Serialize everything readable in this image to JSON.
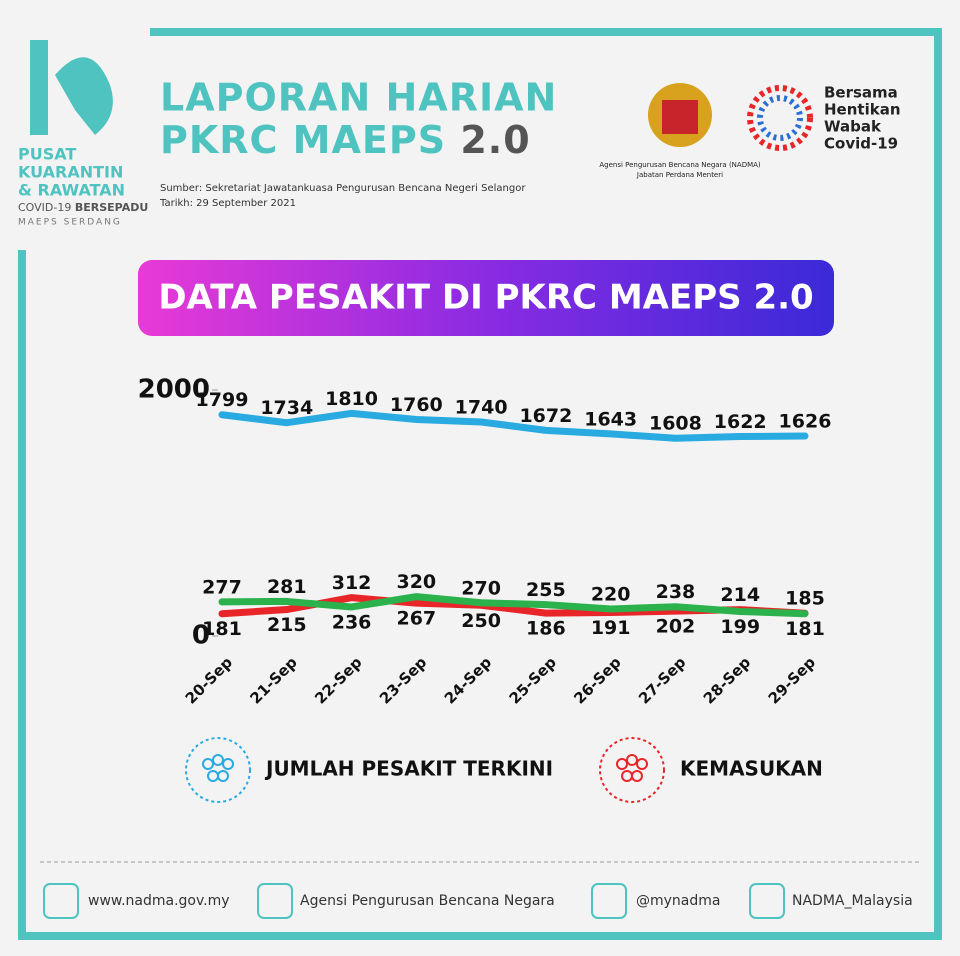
{
  "logo": {
    "lines": [
      "PUSAT",
      "KUARANTIN",
      "& RAWATAN"
    ],
    "sub": "COVID-19",
    "sub_bold": "BERSEPADU",
    "place": "MAEPS SERDANG"
  },
  "header": {
    "title_1": "LAPORAN HARIAN",
    "title_2": "PKRC MAEPS",
    "title_version": "2.0",
    "source": "Sumber: Sekretariat Jawatankuasa Pengurusan Bencana Negeri Selangor",
    "date": "Tarikh: 29 September 2021"
  },
  "nadma": {
    "line_1": "Agensi Pengurusan Bencana Negara (NADMA)",
    "line_2": "Jabatan Perdana Menteri"
  },
  "campaign": [
    "Bersama",
    "Hentikan",
    "Wabak",
    "Covid-19"
  ],
  "chart_data": {
    "type": "line",
    "title": "DATA PESAKIT DI PKRC MAEPS 2.0",
    "categories": [
      "20-Sep",
      "21-Sep",
      "22-Sep",
      "23-Sep",
      "24-Sep",
      "25-Sep",
      "26-Sep",
      "27-Sep",
      "28-Sep",
      "29-Sep"
    ],
    "series": [
      {
        "name": "JUMLAH PESAKIT TERKINI",
        "color": "#29abe2",
        "values": [
          1799,
          1734,
          1810,
          1760,
          1740,
          1672,
          1643,
          1608,
          1622,
          1626
        ]
      },
      {
        "name": "KEMASUKAN",
        "color": "#e8262a",
        "values": [
          181,
          215,
          312,
          267,
          250,
          186,
          191,
          202,
          214,
          185
        ]
      },
      {
        "color": "#2bb24c",
        "values": [
          277,
          281,
          236,
          320,
          270,
          255,
          220,
          238,
          199,
          181
        ]
      }
    ],
    "ylim": [
      0,
      2000
    ],
    "yticks": [
      0,
      2000
    ],
    "grid": false
  },
  "footer": {
    "web": "www.nadma.gov.my",
    "facebook": "Agensi Pengurusan Bencana Negara",
    "twitter": "@mynadma",
    "instagram": "NADMA_Malaysia"
  }
}
